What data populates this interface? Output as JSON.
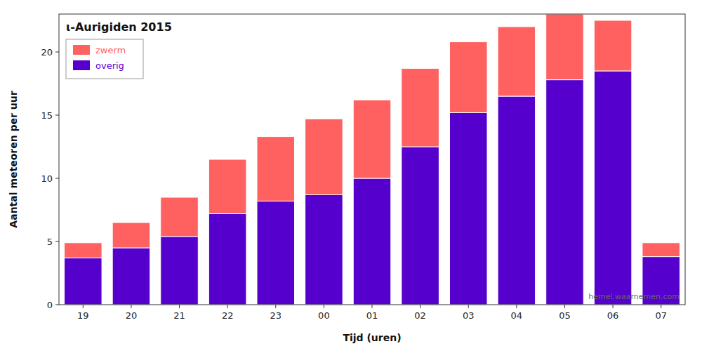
{
  "chart_data": {
    "type": "bar",
    "stacked": true,
    "title": "ι-Aurigiden 2015",
    "xlabel": "Tijd (uren)",
    "ylabel": "Aantal meteoren per uur",
    "categories": [
      "19",
      "20",
      "21",
      "22",
      "23",
      "00",
      "01",
      "02",
      "03",
      "04",
      "05",
      "06",
      "07"
    ],
    "series": [
      {
        "name": "overig",
        "color": "#5500cc",
        "values": [
          3.7,
          4.5,
          5.4,
          7.2,
          8.2,
          8.7,
          10.0,
          12.5,
          15.2,
          16.5,
          17.8,
          18.5,
          3.8
        ]
      },
      {
        "name": "zwerm",
        "color": "#ff6060",
        "values": [
          1.2,
          2.0,
          3.1,
          4.3,
          5.1,
          6.0,
          6.2,
          6.2,
          5.6,
          5.5,
          5.2,
          4.0,
          1.1
        ]
      }
    ],
    "ylim": [
      0,
      23.0
    ],
    "yticks": [
      0,
      5,
      10,
      15,
      20
    ],
    "grid": false,
    "legend": "upper left",
    "annotations": [
      "hemel.waarnemen.com"
    ]
  }
}
